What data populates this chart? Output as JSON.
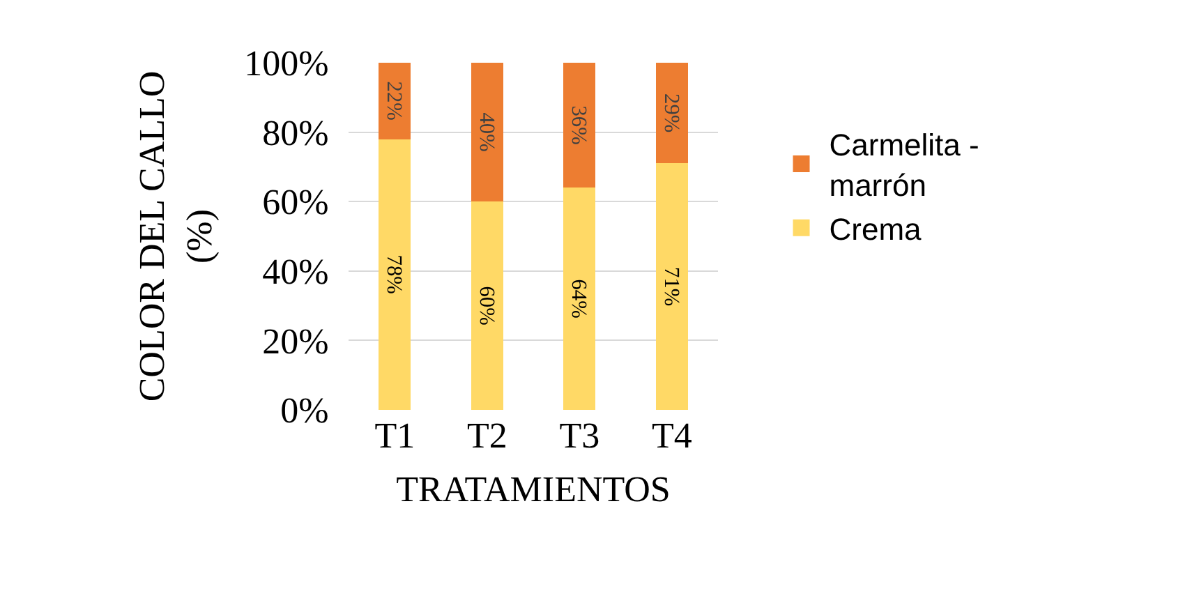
{
  "chart_data": {
    "type": "bar",
    "stacked": true,
    "xlabel": "TRATAMIENTOS",
    "ylabel": "COLOR DEL CALLO\n(%)",
    "categories": [
      "T1",
      "T2",
      "T3",
      "T4"
    ],
    "series": [
      {
        "name": "Crema",
        "color": "#ffd966",
        "values": [
          78,
          60,
          64,
          71
        ],
        "value_labels": [
          "78%",
          "60%",
          "64%",
          "71%"
        ]
      },
      {
        "name": "Carmelita -\nmarrón",
        "color": "#ed7d31",
        "values": [
          22,
          40,
          36,
          29
        ],
        "value_labels": [
          "22%",
          "40%",
          "36%",
          "29%"
        ]
      }
    ],
    "ylim": [
      0,
      100
    ],
    "yticks": [
      {
        "value": 0,
        "label": "0%"
      },
      {
        "value": 20,
        "label": "20%"
      },
      {
        "value": 40,
        "label": "40%"
      },
      {
        "value": 60,
        "label": "60%"
      },
      {
        "value": 80,
        "label": "80%"
      },
      {
        "value": 100,
        "label": "100%"
      }
    ],
    "grid": "y",
    "legend": "right"
  }
}
